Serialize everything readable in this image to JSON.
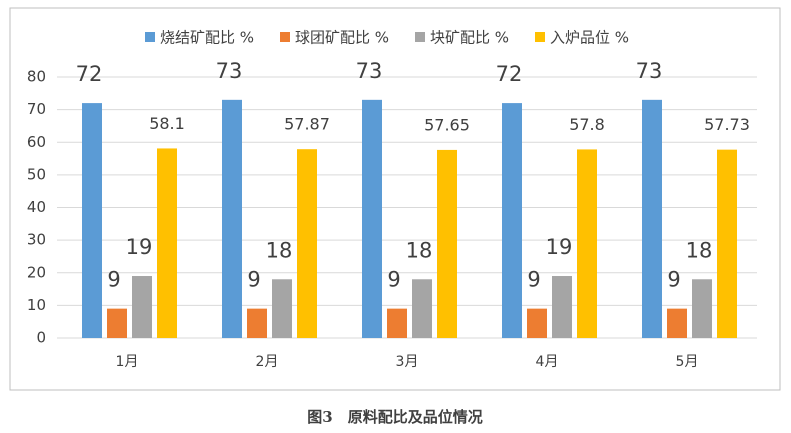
{
  "chart_data": {
    "type": "bar",
    "categories": [
      "1月",
      "2月",
      "3月",
      "4月",
      "5月"
    ],
    "series": [
      {
        "name": "烧结矿配比 %",
        "color": "#5b9bd5",
        "values": [
          72,
          73,
          73,
          72,
          73
        ]
      },
      {
        "name": "球团矿配比 %",
        "color": "#ed7d31",
        "values": [
          9,
          9,
          9,
          9,
          9
        ]
      },
      {
        "name": "块矿配比 %",
        "color": "#a5a5a5",
        "values": [
          19,
          18,
          18,
          19,
          18
        ]
      },
      {
        "name": "入炉品位 %",
        "color": "#ffc000",
        "values": [
          58.1,
          57.87,
          57.65,
          57.8,
          57.73
        ]
      }
    ],
    "ylim": [
      0,
      80
    ],
    "yticks": [
      0,
      10,
      20,
      30,
      40,
      50,
      60,
      70,
      80
    ],
    "grid": true,
    "legend": "top",
    "caption": "图3　原料配比及品位情况"
  }
}
